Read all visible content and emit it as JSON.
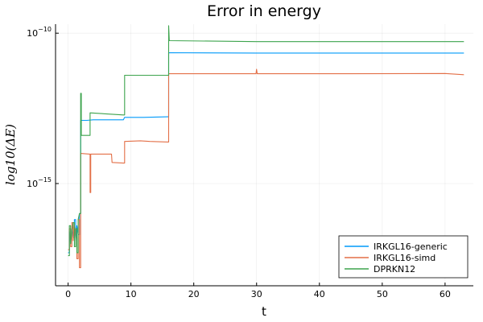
{
  "chart_data": {
    "type": "line",
    "title": "Error in energy",
    "xlabel": "t",
    "ylabel": "log10(ΔE)",
    "xlim": [
      -2,
      64.5
    ],
    "ylim": [
      -18.4,
      -9.7
    ],
    "yscale": "log",
    "x_ticks": [
      0,
      10,
      20,
      30,
      40,
      50,
      60
    ],
    "y_ticks": [
      {
        "value": -10,
        "base": "10",
        "exp": "−10"
      },
      {
        "value": -15,
        "base": "10",
        "exp": "−15"
      }
    ],
    "grid": true,
    "legend_position": "bottom-right",
    "series": [
      {
        "name": "IRKGL16-generic",
        "color": "#009AFA",
        "points": [
          [
            0.0,
            -17.3
          ],
          [
            0.2,
            -16.6
          ],
          [
            0.4,
            -17.0
          ],
          [
            0.6,
            -16.5
          ],
          [
            0.8,
            -16.8
          ],
          [
            1.0,
            -16.2
          ],
          [
            1.2,
            -16.9
          ],
          [
            1.4,
            -16.4
          ],
          [
            1.6,
            -16.7
          ],
          [
            1.8,
            -16.0
          ],
          [
            2.0,
            -12.9
          ],
          [
            3.0,
            -12.9
          ],
          [
            4.0,
            -12.88
          ],
          [
            5.0,
            -12.88
          ],
          [
            6.0,
            -12.88
          ],
          [
            7.0,
            -12.88
          ],
          [
            8.8,
            -12.88
          ],
          [
            9.0,
            -12.8
          ],
          [
            12.0,
            -12.8
          ],
          [
            15.9,
            -12.78
          ],
          [
            16.0,
            -10.65
          ],
          [
            30.0,
            -10.66
          ],
          [
            45.0,
            -10.66
          ],
          [
            63.0,
            -10.66
          ]
        ]
      },
      {
        "name": "IRKGL16-simd",
        "color": "#E36F47",
        "points": [
          [
            0.0,
            -17.2
          ],
          [
            0.2,
            -16.5
          ],
          [
            0.4,
            -17.1
          ],
          [
            0.6,
            -16.3
          ],
          [
            0.8,
            -16.9
          ],
          [
            1.0,
            -16.4
          ],
          [
            1.2,
            -16.8
          ],
          [
            1.4,
            -17.5
          ],
          [
            1.6,
            -16.2
          ],
          [
            1.8,
            -17.8
          ],
          [
            2.0,
            -14.0
          ],
          [
            3.4,
            -14.02
          ],
          [
            3.5,
            -15.3
          ],
          [
            3.6,
            -14.02
          ],
          [
            4.5,
            -14.02
          ],
          [
            6.0,
            -14.02
          ],
          [
            6.9,
            -14.02
          ],
          [
            7.0,
            -14.3
          ],
          [
            8.8,
            -14.32
          ],
          [
            9.0,
            -13.6
          ],
          [
            11.5,
            -13.58
          ],
          [
            13.0,
            -13.6
          ],
          [
            15.9,
            -13.62
          ],
          [
            16.0,
            -11.35
          ],
          [
            29.9,
            -11.35
          ],
          [
            30.0,
            -11.2
          ],
          [
            30.1,
            -11.35
          ],
          [
            45.0,
            -11.35
          ],
          [
            60.0,
            -11.34
          ],
          [
            63.0,
            -11.38
          ]
        ]
      },
      {
        "name": "DPRKN12",
        "color": "#3DA44D",
        "points": [
          [
            0.0,
            -17.4
          ],
          [
            0.2,
            -16.4
          ],
          [
            0.4,
            -17.0
          ],
          [
            0.6,
            -16.6
          ],
          [
            0.8,
            -16.3
          ],
          [
            1.0,
            -17.1
          ],
          [
            1.2,
            -16.5
          ],
          [
            1.4,
            -17.3
          ],
          [
            1.6,
            -16.2
          ],
          [
            1.8,
            -16.0
          ],
          [
            2.0,
            -12.0
          ],
          [
            2.1,
            -13.4
          ],
          [
            3.5,
            -12.65
          ],
          [
            8.8,
            -12.72
          ],
          [
            9.0,
            -11.4
          ],
          [
            15.9,
            -11.4
          ],
          [
            16.0,
            -9.75
          ],
          [
            16.1,
            -10.25
          ],
          [
            30.0,
            -10.28
          ],
          [
            45.0,
            -10.28
          ],
          [
            63.0,
            -10.28
          ]
        ]
      }
    ]
  }
}
